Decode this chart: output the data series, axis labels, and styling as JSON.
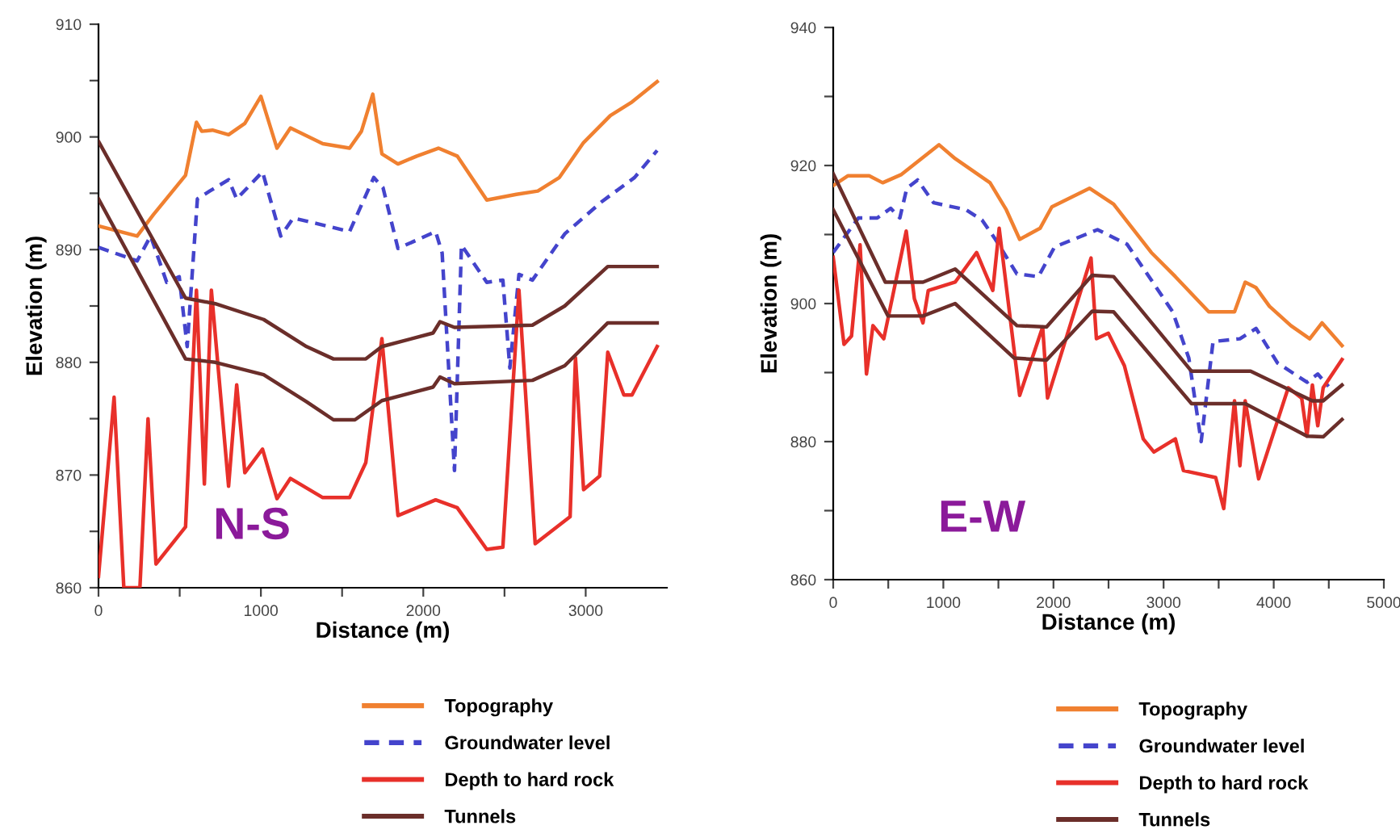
{
  "chart_data": [
    {
      "type": "line",
      "xlabel": "Distance (m)",
      "ylabel": "Elevation (m)",
      "annotations": [
        "N-S"
      ],
      "legend": "bottom",
      "grid": false,
      "marker": "none",
      "xlim": [
        0,
        3500
      ],
      "ylim": [
        860,
        910
      ],
      "xticks": [
        0,
        {
          "value": 500,
          "label": null
        },
        1000,
        {
          "value": 1500,
          "label": null
        },
        2000,
        {
          "value": 2500,
          "label": null
        },
        3000
      ],
      "yticks": [
        860,
        {
          "value": 865,
          "label": null
        },
        870,
        {
          "value": 875,
          "label": null
        },
        880,
        {
          "value": 885,
          "label": null
        },
        890,
        {
          "value": 895,
          "label": null
        },
        900,
        {
          "value": 905,
          "label": null
        },
        910
      ],
      "series": [
        {
          "name": "Topography",
          "color": "#f08030",
          "line_style": "solid",
          "x": [
            0,
            238,
            338,
            536,
            603,
            636,
            702,
            801,
            901,
            1000,
            1099,
            1182,
            1381,
            1546,
            1619,
            1689,
            1745,
            1844,
            1960,
            2093,
            2209,
            2391,
            2573,
            2705,
            2838,
            2987,
            3152,
            3285,
            3440
          ],
          "values": [
            892.1,
            891.2,
            893.1,
            896.6,
            901.3,
            900.5,
            900.6,
            900.2,
            901.2,
            903.6,
            899.0,
            900.8,
            899.4,
            899.0,
            900.5,
            903.8,
            898.5,
            897.6,
            898.3,
            899.0,
            898.3,
            894.4,
            894.9,
            895.2,
            896.4,
            899.5,
            901.9,
            903.1,
            904.9
          ]
        },
        {
          "name": "Groundwater level",
          "color": "#4444cc",
          "line_style": "dashed",
          "x": [
            0,
            238,
            321,
            420,
            497,
            546,
            609,
            685,
            801,
            851,
            1010,
            1122,
            1199,
            1348,
            1546,
            1695,
            1752,
            1844,
            2076,
            2116,
            2192,
            2235,
            2391,
            2490,
            2533,
            2589,
            2672,
            2871,
            3103,
            3301,
            3440
          ],
          "values": [
            890.2,
            889.0,
            891.2,
            887.1,
            887.6,
            881.4,
            894.5,
            895.2,
            896.2,
            894.5,
            896.9,
            891.2,
            892.8,
            892.3,
            891.6,
            896.4,
            895.5,
            890.1,
            891.6,
            889.7,
            870.4,
            890.4,
            887.1,
            887.3,
            879.5,
            887.8,
            887.3,
            891.4,
            894.3,
            896.4,
            898.8
          ]
        },
        {
          "name": "Depth to hard rock",
          "color": "#e8302a",
          "line_style": "solid",
          "x": [
            0,
            96,
            156,
            255,
            305,
            354,
            536,
            603,
            652,
            695,
            801,
            851,
            901,
            1010,
            1099,
            1182,
            1381,
            1546,
            1646,
            1745,
            1844,
            2076,
            2209,
            2391,
            2490,
            2589,
            2689,
            2904,
            2937,
            2987,
            3086,
            3136,
            3235,
            3285,
            3440
          ],
          "values": [
            861.0,
            876.9,
            860.0,
            860.0,
            875.0,
            862.1,
            865.4,
            886.4,
            869.2,
            886.4,
            869.0,
            878.0,
            870.2,
            872.3,
            867.9,
            869.7,
            868.0,
            868.0,
            871.1,
            882.1,
            866.4,
            867.8,
            867.1,
            863.4,
            863.6,
            886.4,
            863.9,
            866.3,
            880.4,
            868.7,
            869.9,
            880.9,
            877.1,
            877.1,
            881.4
          ]
        },
        {
          "name": "Tunnels",
          "color": "#6b2e2a",
          "line_style": "solid",
          "x": [
            0,
            536,
            719,
            1017,
            1281,
            1447,
            1646,
            1745,
            2060,
            2103,
            2192,
            2672,
            2871,
            3136,
            3440
          ],
          "values": [
            899.6,
            885.7,
            885.2,
            883.8,
            881.4,
            880.3,
            880.3,
            881.4,
            882.6,
            883.6,
            883.1,
            883.3,
            885.0,
            888.5,
            888.5
          ]
        },
        {
          "color": "#6b2e2a",
          "line_style": "solid",
          "x": [
            0,
            536,
            719,
            1017,
            1281,
            1447,
            1579,
            1745,
            2060,
            2103,
            2192,
            2672,
            2871,
            3136,
            3440
          ],
          "values": [
            894.5,
            880.3,
            880.0,
            878.9,
            876.5,
            874.9,
            874.9,
            876.6,
            877.8,
            878.7,
            878.1,
            878.4,
            879.7,
            883.5,
            883.5
          ]
        }
      ]
    },
    {
      "type": "line",
      "xlabel": "Distance (m)",
      "ylabel": "Elevation (m)",
      "annotations": [
        "E-W"
      ],
      "legend": "bottom",
      "grid": false,
      "marker": "none",
      "xlim": [
        0,
        5000
      ],
      "ylim": [
        860,
        940
      ],
      "xticks": [
        0,
        {
          "value": 500,
          "label": null
        },
        1000,
        {
          "value": 1500,
          "label": null
        },
        2000,
        {
          "value": 2500,
          "label": null
        },
        3000,
        {
          "value": 3500,
          "label": null
        },
        4000,
        {
          "value": 4500,
          "label": null
        },
        5000
      ],
      "yticks": [
        860,
        {
          "value": 870,
          "label": null
        },
        880,
        {
          "value": 890,
          "label": null
        },
        900,
        {
          "value": 910,
          "label": null
        },
        920,
        {
          "value": 930,
          "label": null
        },
        940
      ],
      "series": [
        {
          "name": "Topography",
          "color": "#f08030",
          "line_style": "solid",
          "x": [
            0,
            132,
            327,
            449,
            620,
            961,
            1107,
            1424,
            1571,
            1693,
            1878,
            1985,
            2327,
            2546,
            2888,
            3107,
            3410,
            3644,
            3741,
            3839,
            3961,
            4156,
            4327,
            4439,
            4620
          ],
          "values": [
            917.1,
            918.5,
            918.5,
            917.5,
            918.7,
            923.0,
            921.0,
            917.5,
            913.6,
            909.3,
            910.9,
            914.0,
            916.7,
            914.4,
            907.4,
            903.9,
            898.8,
            898.8,
            903.1,
            902.3,
            899.6,
            896.8,
            894.9,
            897.2,
            893.9
          ]
        },
        {
          "name": "Groundwater level",
          "color": "#4444cc",
          "line_style": "dashed",
          "x": [
            0,
            229,
            400,
            522,
            605,
            668,
            766,
            912,
            1205,
            1351,
            1473,
            1668,
            1863,
            2010,
            2400,
            2668,
            3083,
            3229,
            3341,
            3449,
            3693,
            3839,
            4034,
            4302,
            4400,
            4498
          ],
          "values": [
            907.4,
            912.4,
            912.4,
            913.8,
            912.4,
            916.7,
            917.9,
            914.6,
            913.6,
            912.1,
            909.3,
            904.3,
            903.9,
            908.2,
            910.7,
            908.6,
            898.8,
            892.1,
            880.0,
            894.5,
            894.9,
            896.4,
            891.4,
            888.6,
            889.8,
            888.0
          ]
        },
        {
          "name": "Depth to hard rock",
          "color": "#e8302a",
          "line_style": "solid",
          "x": [
            0,
            98,
            166,
            244,
            302,
            361,
            459,
            663,
            737,
            815,
            863,
            1107,
            1302,
            1376,
            1449,
            1507,
            1693,
            1902,
            1946,
            2341,
            2390,
            2498,
            2644,
            2815,
            2912,
            3107,
            3180,
            3473,
            3546,
            3644,
            3693,
            3741,
            3863,
            4132,
            4254,
            4302,
            4351,
            4400,
            4449,
            4620
          ],
          "values": [
            906.7,
            894.1,
            895.3,
            908.5,
            889.8,
            896.8,
            894.9,
            910.5,
            900.7,
            897.2,
            901.9,
            903.1,
            907.4,
            904.6,
            901.9,
            910.9,
            886.7,
            896.6,
            886.3,
            906.6,
            894.9,
            895.7,
            891.0,
            880.4,
            878.5,
            880.4,
            875.8,
            874.8,
            870.3,
            885.9,
            876.5,
            885.9,
            874.6,
            887.8,
            886.3,
            880.8,
            888.2,
            882.3,
            887.8,
            891.9
          ]
        },
        {
          "name": "Tunnels",
          "color": "#6b2e2a",
          "line_style": "solid",
          "x": [
            0,
            473,
            815,
            1107,
            1668,
            1937,
            2351,
            2546,
            3254,
            3790,
            4351,
            4449,
            4620
          ],
          "values": [
            918.8,
            903.1,
            903.1,
            905.0,
            896.8,
            896.6,
            904.1,
            903.9,
            890.2,
            890.2,
            885.9,
            885.9,
            888.2
          ]
        },
        {
          "color": "#6b2e2a",
          "line_style": "solid",
          "x": [
            0,
            498,
            815,
            1107,
            1644,
            1937,
            2351,
            2546,
            3254,
            3741,
            4302,
            4449,
            4620
          ],
          "values": [
            913.6,
            898.2,
            898.2,
            900.0,
            892.1,
            891.8,
            898.9,
            898.8,
            885.5,
            885.5,
            880.8,
            880.7,
            883.2
          ]
        }
      ]
    }
  ]
}
